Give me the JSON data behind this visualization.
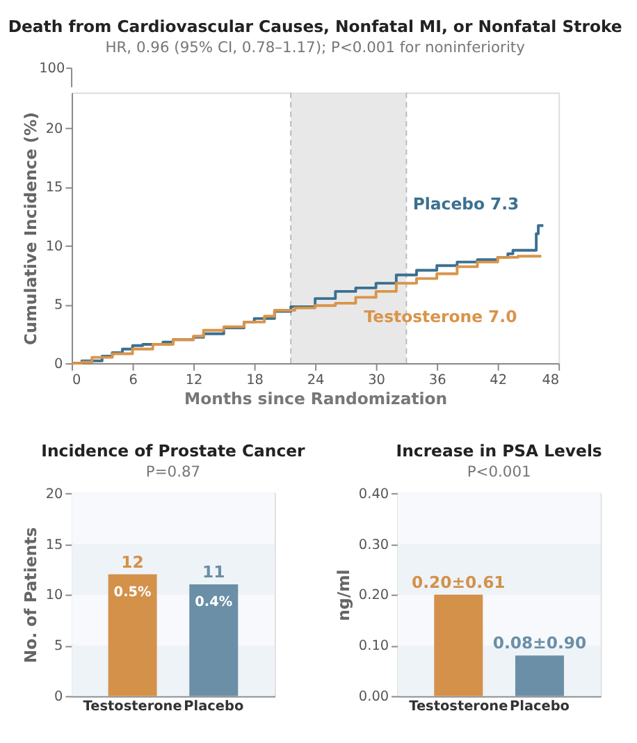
{
  "chart_data": [
    {
      "type": "step",
      "title": "Death from Cardiovascular Causes, Nonfatal MI, or Nonfatal Stroke",
      "subtitle": "HR, 0.96 (95% CI, 0.78–1.17); P<0.001 for noninferiority",
      "xlabel": "Months since Randomization",
      "ylabel": "Cumulative Incidence (%)",
      "xlim": [
        0,
        48
      ],
      "xticks": [
        0,
        6,
        12,
        18,
        24,
        30,
        36,
        42,
        48
      ],
      "ylim": [
        0,
        23
      ],
      "yticks": [
        0,
        5,
        10,
        15,
        20
      ],
      "series": [
        {
          "name": "Placebo 7.3",
          "color": "#3b7090",
          "x": [
            0,
            1,
            3,
            4,
            5,
            6,
            7,
            9,
            10,
            12,
            13,
            15,
            17,
            18,
            20,
            21.6,
            24,
            26,
            28,
            30,
            32,
            34,
            36,
            38,
            40,
            42,
            43,
            43.5,
            45.7,
            45.8,
            46,
            46.5
          ],
          "values": [
            0,
            0.2,
            0.6,
            0.9,
            1.2,
            1.5,
            1.6,
            1.8,
            2.0,
            2.2,
            2.5,
            3.0,
            3.5,
            3.8,
            4.4,
            4.8,
            5.5,
            6.1,
            6.4,
            6.8,
            7.5,
            7.9,
            8.3,
            8.6,
            8.8,
            9.0,
            9.3,
            9.6,
            9.6,
            11.0,
            11.7,
            11.7
          ]
        },
        {
          "name": "Testosterone 7.0",
          "color": "#d9944a",
          "x": [
            0,
            1,
            2,
            4,
            6,
            8,
            10,
            12,
            13,
            15,
            17,
            19,
            20,
            22,
            24,
            26,
            28,
            30,
            32,
            34,
            36,
            38,
            40,
            42,
            44,
            46.3
          ],
          "values": [
            0,
            0.1,
            0.5,
            0.8,
            1.2,
            1.6,
            2.0,
            2.3,
            2.8,
            3.1,
            3.5,
            4.0,
            4.5,
            4.7,
            4.9,
            5.1,
            5.6,
            6.1,
            6.8,
            7.2,
            7.6,
            8.2,
            8.6,
            9.0,
            9.1,
            9.1
          ]
        }
      ],
      "bands": [
        {
          "axis": "x",
          "from": 21.6,
          "to": 33,
          "color": "#e2e2e2"
        }
      ],
      "ref_lines": [
        {
          "axis": "x",
          "value": 21.6,
          "color": "#bbbbbb",
          "line_style": "dashed"
        },
        {
          "axis": "x",
          "value": 33,
          "color": "#bbbbbb",
          "line_style": "dashed"
        }
      ],
      "annotations": [
        "100"
      ],
      "legend": false,
      "line_style": "solid",
      "marker": "none"
    },
    {
      "type": "bar",
      "title": "Incidence of Prostate Cancer",
      "subtitle": "P=0.87",
      "ylabel": "No. of Patients",
      "categories": [
        "Testosterone",
        "Placebo"
      ],
      "values": [
        12,
        11
      ],
      "colors": [
        "#d4914a",
        "#6a8fa6"
      ],
      "ylim": [
        0,
        20
      ],
      "yticks": [
        0,
        5,
        10,
        15,
        20
      ],
      "data_labels": true,
      "grid": "y",
      "annotations": [
        "0.5%",
        "0.4%"
      ]
    },
    {
      "type": "bar",
      "title": "Increase in PSA Levels",
      "subtitle": "P<0.001",
      "ylabel": "ng/ml",
      "categories": [
        "Testosterone",
        "Placebo"
      ],
      "values": [
        0.2,
        0.08
      ],
      "colors": [
        "#d4914a",
        "#6a8fa6"
      ],
      "ylim": [
        0,
        0.4
      ],
      "yticks": [
        {
          "value": 0,
          "label": "0.00"
        },
        {
          "value": 0.1,
          "label": "0.10"
        },
        {
          "value": 0.2,
          "label": "0.20"
        },
        {
          "value": 0.3,
          "label": "0.30"
        },
        {
          "value": 0.4,
          "label": "0.40"
        }
      ],
      "value_labels": [
        "0.20±0.61",
        "0.08±0.90"
      ],
      "grid": "y"
    }
  ]
}
